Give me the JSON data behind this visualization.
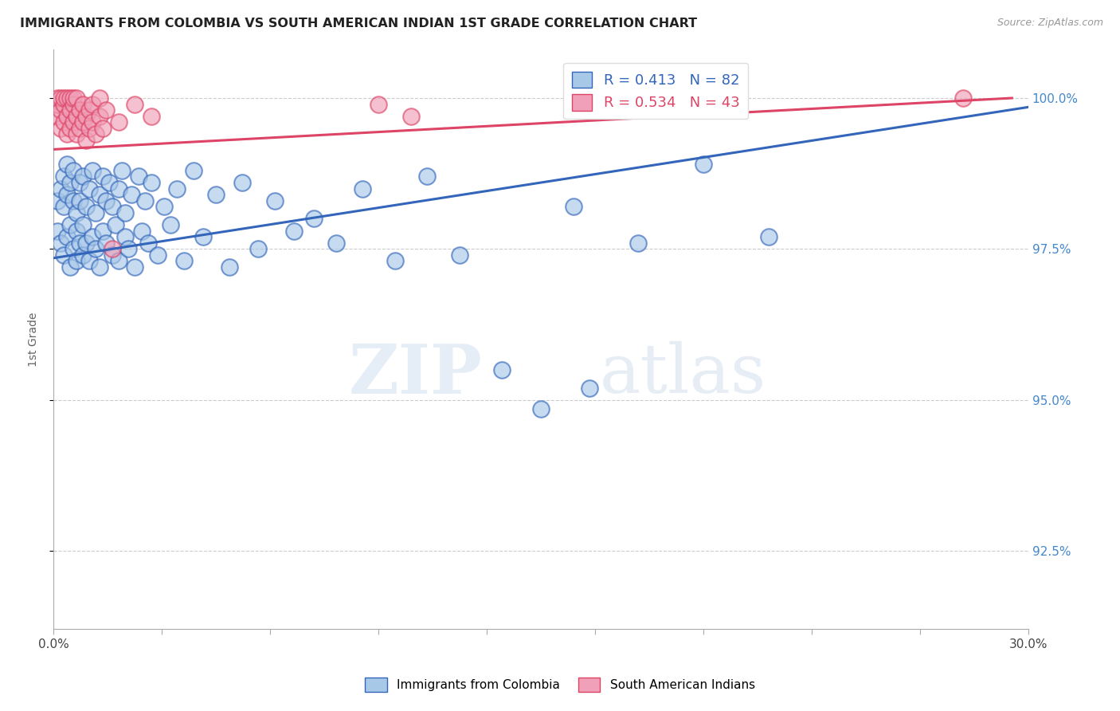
{
  "title": "IMMIGRANTS FROM COLOMBIA VS SOUTH AMERICAN INDIAN 1ST GRADE CORRELATION CHART",
  "source": "Source: ZipAtlas.com",
  "ylabel": "1st Grade",
  "right_yticks": [
    92.5,
    95.0,
    97.5,
    100.0
  ],
  "right_yticklabels": [
    "92.5%",
    "95.0%",
    "97.5%",
    "100.0%"
  ],
  "xmin": 0.0,
  "xmax": 0.3,
  "ymin": 91.2,
  "ymax": 100.8,
  "legend_blue_r": "0.413",
  "legend_blue_n": 82,
  "legend_pink_r": "0.534",
  "legend_pink_n": 43,
  "blue_color": "#a8c8e8",
  "pink_color": "#f0a0b8",
  "blue_line_color": "#3366bb",
  "pink_line_color": "#dd4466",
  "watermark_zip": "ZIP",
  "watermark_atlas": "atlas",
  "blue_line_x": [
    0.0,
    0.3
  ],
  "blue_line_y": [
    97.35,
    99.85
  ],
  "pink_line_x": [
    0.0,
    0.295
  ],
  "pink_line_y": [
    99.15,
    100.0
  ],
  "colombia_points": [
    [
      0.001,
      97.8
    ],
    [
      0.001,
      98.3
    ],
    [
      0.002,
      98.5
    ],
    [
      0.002,
      97.6
    ],
    [
      0.003,
      98.7
    ],
    [
      0.003,
      97.4
    ],
    [
      0.003,
      98.2
    ],
    [
      0.004,
      98.9
    ],
    [
      0.004,
      97.7
    ],
    [
      0.004,
      98.4
    ],
    [
      0.005,
      97.2
    ],
    [
      0.005,
      98.6
    ],
    [
      0.005,
      97.9
    ],
    [
      0.006,
      98.3
    ],
    [
      0.006,
      97.5
    ],
    [
      0.006,
      98.8
    ],
    [
      0.007,
      97.3
    ],
    [
      0.007,
      98.1
    ],
    [
      0.007,
      97.8
    ],
    [
      0.008,
      98.6
    ],
    [
      0.008,
      97.6
    ],
    [
      0.008,
      98.3
    ],
    [
      0.009,
      97.4
    ],
    [
      0.009,
      98.7
    ],
    [
      0.009,
      97.9
    ],
    [
      0.01,
      98.2
    ],
    [
      0.01,
      97.6
    ],
    [
      0.011,
      98.5
    ],
    [
      0.011,
      97.3
    ],
    [
      0.012,
      98.8
    ],
    [
      0.012,
      97.7
    ],
    [
      0.013,
      98.1
    ],
    [
      0.013,
      97.5
    ],
    [
      0.014,
      98.4
    ],
    [
      0.014,
      97.2
    ],
    [
      0.015,
      98.7
    ],
    [
      0.015,
      97.8
    ],
    [
      0.016,
      98.3
    ],
    [
      0.016,
      97.6
    ],
    [
      0.017,
      98.6
    ],
    [
      0.018,
      97.4
    ],
    [
      0.018,
      98.2
    ],
    [
      0.019,
      97.9
    ],
    [
      0.02,
      98.5
    ],
    [
      0.02,
      97.3
    ],
    [
      0.021,
      98.8
    ],
    [
      0.022,
      97.7
    ],
    [
      0.022,
      98.1
    ],
    [
      0.023,
      97.5
    ],
    [
      0.024,
      98.4
    ],
    [
      0.025,
      97.2
    ],
    [
      0.026,
      98.7
    ],
    [
      0.027,
      97.8
    ],
    [
      0.028,
      98.3
    ],
    [
      0.029,
      97.6
    ],
    [
      0.03,
      98.6
    ],
    [
      0.032,
      97.4
    ],
    [
      0.034,
      98.2
    ],
    [
      0.036,
      97.9
    ],
    [
      0.038,
      98.5
    ],
    [
      0.04,
      97.3
    ],
    [
      0.043,
      98.8
    ],
    [
      0.046,
      97.7
    ],
    [
      0.05,
      98.4
    ],
    [
      0.054,
      97.2
    ],
    [
      0.058,
      98.6
    ],
    [
      0.063,
      97.5
    ],
    [
      0.068,
      98.3
    ],
    [
      0.074,
      97.8
    ],
    [
      0.08,
      98.0
    ],
    [
      0.087,
      97.6
    ],
    [
      0.095,
      98.5
    ],
    [
      0.105,
      97.3
    ],
    [
      0.115,
      98.7
    ],
    [
      0.125,
      97.4
    ],
    [
      0.138,
      95.5
    ],
    [
      0.15,
      94.85
    ],
    [
      0.165,
      95.2
    ],
    [
      0.16,
      98.2
    ],
    [
      0.18,
      97.6
    ],
    [
      0.2,
      98.9
    ],
    [
      0.22,
      97.7
    ]
  ],
  "indian_points": [
    [
      0.001,
      99.7
    ],
    [
      0.001,
      99.9
    ],
    [
      0.001,
      100.0
    ],
    [
      0.002,
      99.5
    ],
    [
      0.002,
      99.8
    ],
    [
      0.002,
      100.0
    ],
    [
      0.003,
      99.6
    ],
    [
      0.003,
      99.9
    ],
    [
      0.003,
      100.0
    ],
    [
      0.004,
      99.4
    ],
    [
      0.004,
      99.7
    ],
    [
      0.004,
      100.0
    ],
    [
      0.005,
      99.5
    ],
    [
      0.005,
      99.8
    ],
    [
      0.005,
      100.0
    ],
    [
      0.006,
      99.6
    ],
    [
      0.006,
      99.9
    ],
    [
      0.006,
      100.0
    ],
    [
      0.007,
      99.4
    ],
    [
      0.007,
      99.7
    ],
    [
      0.007,
      100.0
    ],
    [
      0.008,
      99.5
    ],
    [
      0.008,
      99.8
    ],
    [
      0.009,
      99.6
    ],
    [
      0.009,
      99.9
    ],
    [
      0.01,
      99.3
    ],
    [
      0.01,
      99.7
    ],
    [
      0.011,
      99.5
    ],
    [
      0.011,
      99.8
    ],
    [
      0.012,
      99.6
    ],
    [
      0.012,
      99.9
    ],
    [
      0.013,
      99.4
    ],
    [
      0.014,
      99.7
    ],
    [
      0.014,
      100.0
    ],
    [
      0.015,
      99.5
    ],
    [
      0.016,
      99.8
    ],
    [
      0.018,
      97.5
    ],
    [
      0.02,
      99.6
    ],
    [
      0.025,
      99.9
    ],
    [
      0.03,
      99.7
    ],
    [
      0.1,
      99.9
    ],
    [
      0.11,
      99.7
    ],
    [
      0.28,
      100.0
    ]
  ]
}
